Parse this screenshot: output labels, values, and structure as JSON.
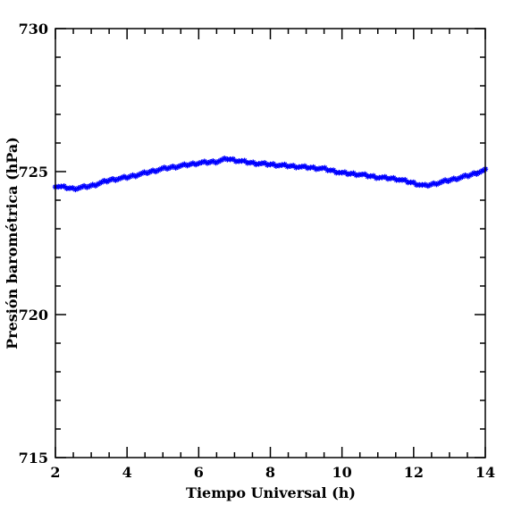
{
  "chart_data": {
    "type": "scatter",
    "title": "",
    "xlabel": "Tiempo Universal (h)",
    "ylabel": "Presión barométrica (hPa)",
    "xlim": [
      2,
      14
    ],
    "ylim": [
      715,
      730
    ],
    "xticks": [
      2,
      4,
      6,
      8,
      10,
      12,
      14
    ],
    "yticks": [
      715,
      720,
      725,
      730
    ],
    "xtick_labels": [
      "2",
      "4",
      "6",
      "8",
      "10",
      "12",
      "14"
    ],
    "ytick_labels": [
      "715",
      "720",
      "725",
      "730"
    ],
    "grid": false,
    "legend": "none",
    "marker_color": "#0000ff",
    "series": [
      {
        "x": [
          2.0,
          2.5,
          3.0,
          3.5,
          4.0,
          4.5,
          5.0,
          5.5,
          6.0,
          6.5,
          6.8,
          7.0,
          7.5,
          8.0,
          8.5,
          9.0,
          9.5,
          10.0,
          10.5,
          11.0,
          11.5,
          12.0,
          12.3,
          12.5,
          13.0,
          13.5,
          14.0
        ],
        "y": [
          724.5,
          724.4,
          724.5,
          724.7,
          724.8,
          724.95,
          725.1,
          725.2,
          725.3,
          725.35,
          725.45,
          725.4,
          725.3,
          725.25,
          725.2,
          725.15,
          725.1,
          724.95,
          724.9,
          724.8,
          724.75,
          724.6,
          724.5,
          724.55,
          724.7,
          724.85,
          725.05
        ]
      }
    ]
  }
}
